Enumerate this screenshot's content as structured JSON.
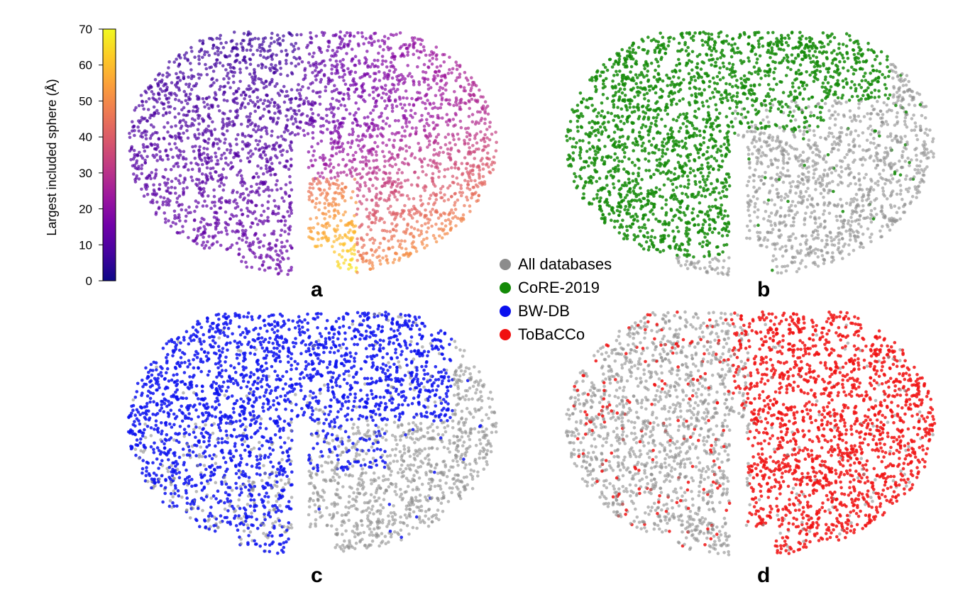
{
  "chart_data": [
    {
      "type": "scatter",
      "panel": "a",
      "colorbar": {
        "label": "Largest included sphere (Å)",
        "range": [
          0,
          70
        ],
        "ticks": [
          0,
          10,
          20,
          30,
          40,
          50,
          60,
          70
        ],
        "colormap": [
          "#0d0887",
          "#46039f",
          "#7201a8",
          "#9c179e",
          "#bd3786",
          "#d8576b",
          "#ed7953",
          "#fb9f3a",
          "#fdca26",
          "#f0f921"
        ]
      },
      "color_trend": "low LIS (~5-15 Å) on the left lobe, increasing to ~30-70 Å toward the lower-right inner fingers"
    },
    {
      "type": "scatter",
      "panel": "b",
      "series": [
        {
          "name": "All databases",
          "color": "#8c8c8c"
        },
        {
          "name": "CoRE-2019",
          "color": "#138a07",
          "region": "upper-left"
        }
      ]
    },
    {
      "type": "scatter",
      "panel": "c",
      "series": [
        {
          "name": "All databases",
          "color": "#8c8c8c"
        },
        {
          "name": "BW-DB",
          "color": "#0a10ee",
          "region": "upper and left"
        }
      ]
    },
    {
      "type": "scatter",
      "panel": "d",
      "series": [
        {
          "name": "All databases",
          "color": "#8c8c8c"
        },
        {
          "name": "ToBaCCo",
          "color": "#f01010",
          "region": "right, sparse left"
        }
      ]
    }
  ],
  "legend": {
    "items": [
      {
        "label": "All databases",
        "color": "#8c8c8c"
      },
      {
        "label": "CoRE-2019",
        "color": "#138a07"
      },
      {
        "label": "BW-DB",
        "color": "#0a10ee"
      },
      {
        "label": "ToBaCCo",
        "color": "#f01010"
      }
    ]
  },
  "panels": {
    "a": "a",
    "b": "b",
    "c": "c",
    "d": "d"
  }
}
